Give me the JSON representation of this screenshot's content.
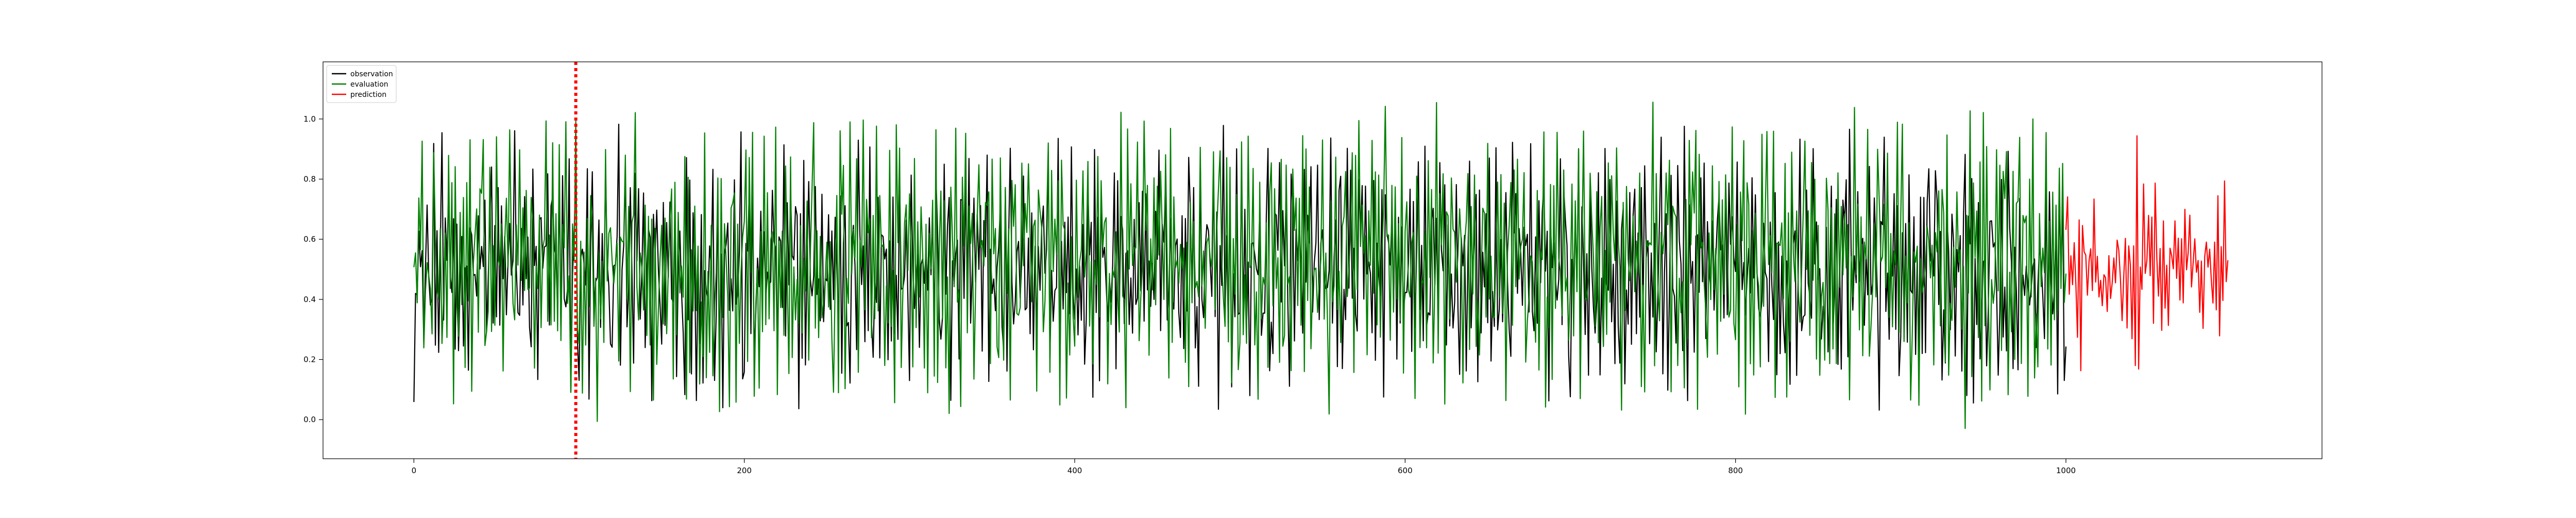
{
  "chart_data": {
    "type": "line",
    "title": "",
    "xlabel": "",
    "ylabel": "",
    "xlim": [
      -55,
      1155
    ],
    "ylim": [
      -0.13,
      1.19
    ],
    "grid": false,
    "legend_position": "top-left",
    "x_ticks": [
      0,
      200,
      400,
      600,
      800,
      1000
    ],
    "x_tick_labels": [
      "0",
      "200",
      "400",
      "600",
      "800",
      "1000"
    ],
    "y_ticks": [
      0.0,
      0.2,
      0.4,
      0.6,
      0.8,
      1.0
    ],
    "y_tick_labels": [
      "0.0",
      "0.2",
      "0.4",
      "0.6",
      "0.8",
      "1.0"
    ],
    "vline": {
      "x": 98,
      "color": "#ff0000",
      "style": "dotted"
    },
    "series": [
      {
        "name": "observation",
        "color": "#000000",
        "x_range": [
          0,
          1000
        ],
        "y_range": [
          0.0,
          1.0
        ],
        "values": [
          0.09,
          0.75,
          0.31,
          0.62,
          0.18,
          0.93,
          0.05,
          0.47,
          0.81,
          0.22,
          0.66,
          0.12,
          0.88,
          0.39,
          0.57,
          0.03,
          0.71,
          0.95,
          0.27,
          0.44,
          0.15,
          0.84,
          0.52,
          0.36,
          0.98,
          0.08,
          0.63,
          0.29,
          0.77,
          0.41,
          0.19,
          0.91,
          0.55,
          0.06,
          0.69,
          0.33,
          0.86,
          0.24,
          0.5,
          0.97,
          0.13,
          0.6,
          0.38,
          0.79,
          0.02,
          0.73,
          0.45,
          0.9,
          0.21,
          0.58,
          0.35,
          0.82,
          0.1,
          0.67,
          0.49,
          0.94,
          0.26,
          0.42,
          0.76,
          0.16,
          0.64,
          0.99,
          0.3,
          0.53,
          0.07,
          0.87,
          0.4,
          0.7,
          0.2,
          0.96,
          0.46,
          0.11,
          0.8,
          0.34,
          0.61,
          0.04,
          0.89,
          0.51,
          0.25,
          0.74,
          0.37,
          0.92,
          0.14,
          0.56,
          0.83,
          0.28,
          0.68,
          0.01,
          0.78,
          0.43,
          0.97,
          0.23,
          0.59,
          0.32,
          0.85,
          0.09,
          0.65,
          0.48,
          0.93,
          0.17
        ]
      },
      {
        "name": "evaluation",
        "color": "#008000",
        "x_range": [
          0,
          1000
        ],
        "y_range": [
          -0.08,
          1.12
        ],
        "values": [
          0.45,
          0.92,
          0.12,
          0.71,
          0.33,
          1.05,
          0.06,
          0.58,
          0.84,
          0.19,
          0.63,
          -0.04,
          0.97,
          0.41,
          0.74,
          0.09,
          0.88,
          0.27,
          0.55,
          1.01,
          0.15,
          0.69,
          0.37,
          0.91,
          0.02,
          0.79,
          0.48,
          0.23,
          0.95,
          0.31,
          0.66,
          0.11,
          0.86,
          0.43,
          1.06,
          0.18,
          0.6,
          0.35,
          0.82,
          -0.02,
          0.73,
          0.5,
          0.98,
          0.25,
          0.57,
          0.08,
          0.9,
          0.39,
          0.67,
          0.14,
          1.03,
          0.29,
          0.76,
          0.46,
          0.05,
          0.87,
          0.53,
          0.21,
          0.94,
          0.36,
          0.7,
          0.1,
          0.83,
          0.44,
          0.99,
          0.17,
          0.62,
          0.32,
          0.89,
          0.03,
          0.78,
          0.51,
          1.04,
          0.24,
          0.65,
          0.4,
          0.92,
          0.07,
          0.72,
          0.47,
          0.96,
          0.2,
          0.59,
          0.34,
          0.85,
          -0.03,
          0.75,
          0.52,
          1.02,
          0.28,
          0.68,
          0.13,
          0.93,
          0.42,
          0.8,
          0.16,
          0.61,
          0.38,
          0.9,
          0.22
        ]
      },
      {
        "name": "prediction",
        "color": "#ff0000",
        "x_range": [
          1000,
          1098
        ],
        "y_range": [
          0.05,
          0.98
        ],
        "values": [
          0.58,
          0.72,
          0.41,
          0.66,
          0.33,
          0.76,
          0.49,
          0.25,
          0.7,
          0.05,
          0.62,
          0.44,
          0.55,
          0.29,
          0.68,
          0.51,
          0.38,
          0.85,
          0.46,
          0.6,
          0.35,
          0.57,
          0.24,
          0.64,
          0.5,
          0.42,
          0.61,
          0.53,
          0.39,
          0.59,
          0.47,
          0.66,
          0.44,
          0.58,
          0.37,
          0.62,
          0.52,
          0.34,
          0.56,
          0.48,
          0.22,
          0.75,
          0.17,
          0.98,
          0.16,
          0.63,
          0.3,
          0.84,
          0.43
        ]
      }
    ]
  }
}
